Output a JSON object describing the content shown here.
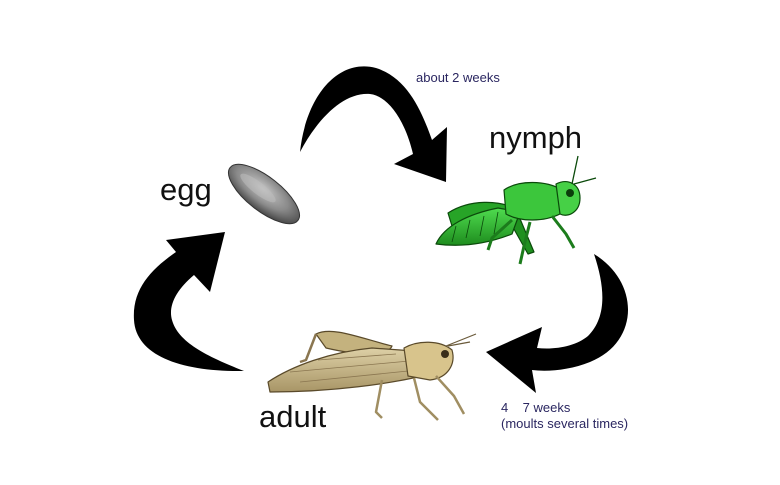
{
  "diagram": {
    "stages": [
      {
        "id": "egg",
        "label": "egg"
      },
      {
        "id": "nymph",
        "label": "nymph"
      },
      {
        "id": "adult",
        "label": "adult"
      }
    ],
    "transitions": [
      {
        "from": "egg",
        "to": "nymph",
        "duration": "about 2 weeks"
      },
      {
        "from": "nymph",
        "to": "adult",
        "duration_line1": "4    7 weeks",
        "duration_line2": "(moults several times)"
      },
      {
        "from": "adult",
        "to": "egg"
      }
    ],
    "colors": {
      "arrow": "#000000",
      "duration_text": "#2a2660",
      "nymph_body": "#2fb52f",
      "adult_body": "#c9b88a",
      "egg": "#8a8a8a"
    },
    "icons": [
      "egg-illustration",
      "nymph-grasshopper-illustration",
      "adult-grasshopper-illustration"
    ]
  }
}
